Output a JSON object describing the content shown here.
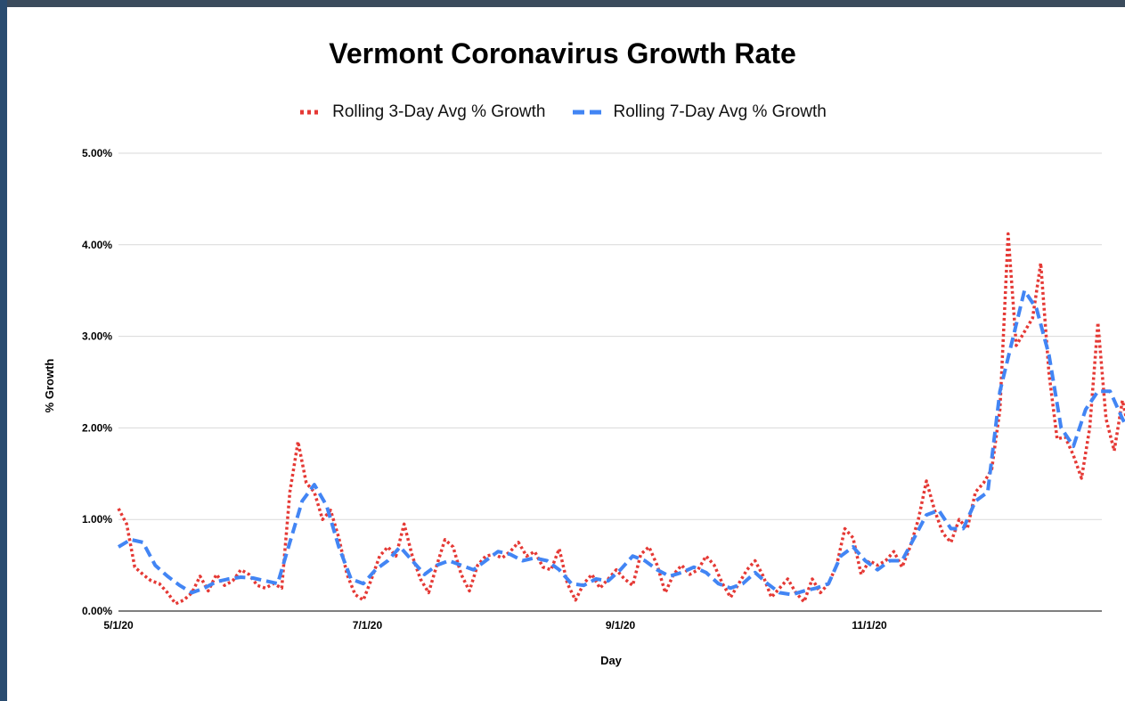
{
  "chart_data": {
    "type": "line",
    "title": "Vermont Coronavirus Growth Rate",
    "xlabel": "Day",
    "ylabel": "% Growth",
    "ylim": [
      0,
      5
    ],
    "y_ticks": [
      "0.00%",
      "1.00%",
      "2.00%",
      "3.00%",
      "4.00%",
      "5.00%"
    ],
    "x_ticks": [
      {
        "label": "5/1/20",
        "day": 0
      },
      {
        "label": "7/1/20",
        "day": 61
      },
      {
        "label": "9/1/20",
        "day": 123
      },
      {
        "label": "11/1/20",
        "day": 184
      }
    ],
    "x_range_days": [
      0,
      240
    ],
    "grid": true,
    "legend_position": "top-center",
    "series": [
      {
        "name": "Rolling 3-Day Avg % Growth",
        "color": "#e53935",
        "style": "dotted",
        "points": [
          [
            0,
            1.12
          ],
          [
            2,
            0.95
          ],
          [
            4,
            0.48
          ],
          [
            6,
            0.4
          ],
          [
            8,
            0.33
          ],
          [
            10,
            0.3
          ],
          [
            12,
            0.2
          ],
          [
            14,
            0.08
          ],
          [
            16,
            0.12
          ],
          [
            18,
            0.2
          ],
          [
            20,
            0.38
          ],
          [
            22,
            0.22
          ],
          [
            24,
            0.4
          ],
          [
            26,
            0.28
          ],
          [
            28,
            0.33
          ],
          [
            30,
            0.45
          ],
          [
            32,
            0.4
          ],
          [
            34,
            0.28
          ],
          [
            36,
            0.25
          ],
          [
            38,
            0.3
          ],
          [
            40,
            0.25
          ],
          [
            42,
            1.3
          ],
          [
            44,
            1.85
          ],
          [
            46,
            1.4
          ],
          [
            48,
            1.3
          ],
          [
            50,
            1.0
          ],
          [
            52,
            1.1
          ],
          [
            54,
            0.8
          ],
          [
            56,
            0.4
          ],
          [
            58,
            0.18
          ],
          [
            60,
            0.12
          ],
          [
            62,
            0.35
          ],
          [
            64,
            0.6
          ],
          [
            66,
            0.7
          ],
          [
            68,
            0.6
          ],
          [
            70,
            0.95
          ],
          [
            72,
            0.6
          ],
          [
            74,
            0.35
          ],
          [
            76,
            0.2
          ],
          [
            78,
            0.5
          ],
          [
            80,
            0.78
          ],
          [
            82,
            0.7
          ],
          [
            84,
            0.4
          ],
          [
            86,
            0.22
          ],
          [
            88,
            0.5
          ],
          [
            90,
            0.6
          ],
          [
            92,
            0.62
          ],
          [
            94,
            0.58
          ],
          [
            96,
            0.65
          ],
          [
            98,
            0.75
          ],
          [
            100,
            0.6
          ],
          [
            102,
            0.65
          ],
          [
            104,
            0.48
          ],
          [
            106,
            0.45
          ],
          [
            108,
            0.68
          ],
          [
            110,
            0.3
          ],
          [
            112,
            0.12
          ],
          [
            114,
            0.3
          ],
          [
            116,
            0.4
          ],
          [
            118,
            0.25
          ],
          [
            120,
            0.35
          ],
          [
            122,
            0.45
          ],
          [
            124,
            0.35
          ],
          [
            126,
            0.28
          ],
          [
            128,
            0.62
          ],
          [
            130,
            0.7
          ],
          [
            132,
            0.5
          ],
          [
            134,
            0.2
          ],
          [
            136,
            0.4
          ],
          [
            138,
            0.5
          ],
          [
            140,
            0.4
          ],
          [
            142,
            0.45
          ],
          [
            144,
            0.6
          ],
          [
            146,
            0.5
          ],
          [
            148,
            0.3
          ],
          [
            150,
            0.15
          ],
          [
            152,
            0.3
          ],
          [
            154,
            0.45
          ],
          [
            156,
            0.55
          ],
          [
            158,
            0.38
          ],
          [
            160,
            0.15
          ],
          [
            162,
            0.25
          ],
          [
            164,
            0.35
          ],
          [
            166,
            0.2
          ],
          [
            168,
            0.1
          ],
          [
            170,
            0.35
          ],
          [
            172,
            0.2
          ],
          [
            174,
            0.3
          ],
          [
            176,
            0.5
          ],
          [
            178,
            0.9
          ],
          [
            180,
            0.8
          ],
          [
            182,
            0.4
          ],
          [
            184,
            0.55
          ],
          [
            186,
            0.5
          ],
          [
            188,
            0.55
          ],
          [
            190,
            0.65
          ],
          [
            192,
            0.48
          ],
          [
            194,
            0.7
          ],
          [
            196,
            1.0
          ],
          [
            198,
            1.42
          ],
          [
            200,
            1.1
          ],
          [
            202,
            0.85
          ],
          [
            204,
            0.75
          ],
          [
            206,
            1.0
          ],
          [
            208,
            0.9
          ],
          [
            210,
            1.3
          ],
          [
            212,
            1.4
          ],
          [
            214,
            1.55
          ],
          [
            216,
            2.2
          ],
          [
            218,
            4.12
          ],
          [
            220,
            2.9
          ],
          [
            222,
            3.05
          ],
          [
            224,
            3.2
          ],
          [
            226,
            3.8
          ],
          [
            228,
            2.6
          ],
          [
            230,
            1.88
          ],
          [
            232,
            1.9
          ],
          [
            234,
            1.7
          ],
          [
            236,
            1.45
          ],
          [
            238,
            2.0
          ],
          [
            240,
            3.15
          ],
          [
            242,
            2.1
          ],
          [
            244,
            1.75
          ],
          [
            246,
            2.3
          ],
          [
            248,
            1.9
          ],
          [
            250,
            1.55
          ],
          [
            252,
            1.8
          ],
          [
            254,
            1.4
          ],
          [
            256,
            1.25
          ],
          [
            258,
            1.35
          ],
          [
            260,
            1.1
          ]
        ]
      },
      {
        "name": "Rolling 7-Day Avg % Growth",
        "color": "#4285f4",
        "style": "dashed",
        "points": [
          [
            0,
            0.7
          ],
          [
            3,
            0.78
          ],
          [
            6,
            0.75
          ],
          [
            9,
            0.5
          ],
          [
            12,
            0.38
          ],
          [
            15,
            0.28
          ],
          [
            18,
            0.2
          ],
          [
            21,
            0.25
          ],
          [
            24,
            0.32
          ],
          [
            27,
            0.35
          ],
          [
            30,
            0.37
          ],
          [
            33,
            0.36
          ],
          [
            36,
            0.33
          ],
          [
            39,
            0.3
          ],
          [
            42,
            0.75
          ],
          [
            45,
            1.2
          ],
          [
            48,
            1.38
          ],
          [
            51,
            1.15
          ],
          [
            54,
            0.7
          ],
          [
            57,
            0.35
          ],
          [
            60,
            0.3
          ],
          [
            63,
            0.45
          ],
          [
            66,
            0.55
          ],
          [
            69,
            0.7
          ],
          [
            72,
            0.55
          ],
          [
            75,
            0.4
          ],
          [
            78,
            0.5
          ],
          [
            81,
            0.55
          ],
          [
            84,
            0.5
          ],
          [
            87,
            0.45
          ],
          [
            90,
            0.55
          ],
          [
            93,
            0.65
          ],
          [
            96,
            0.62
          ],
          [
            99,
            0.55
          ],
          [
            102,
            0.58
          ],
          [
            105,
            0.55
          ],
          [
            108,
            0.45
          ],
          [
            111,
            0.3
          ],
          [
            114,
            0.28
          ],
          [
            117,
            0.35
          ],
          [
            120,
            0.33
          ],
          [
            123,
            0.45
          ],
          [
            126,
            0.6
          ],
          [
            129,
            0.55
          ],
          [
            132,
            0.45
          ],
          [
            135,
            0.38
          ],
          [
            138,
            0.42
          ],
          [
            141,
            0.48
          ],
          [
            144,
            0.42
          ],
          [
            147,
            0.3
          ],
          [
            150,
            0.25
          ],
          [
            153,
            0.3
          ],
          [
            156,
            0.42
          ],
          [
            159,
            0.3
          ],
          [
            162,
            0.2
          ],
          [
            165,
            0.18
          ],
          [
            168,
            0.22
          ],
          [
            171,
            0.25
          ],
          [
            174,
            0.3
          ],
          [
            177,
            0.6
          ],
          [
            180,
            0.7
          ],
          [
            183,
            0.55
          ],
          [
            186,
            0.45
          ],
          [
            189,
            0.55
          ],
          [
            192,
            0.55
          ],
          [
            195,
            0.8
          ],
          [
            198,
            1.05
          ],
          [
            201,
            1.1
          ],
          [
            204,
            0.9
          ],
          [
            207,
            0.9
          ],
          [
            210,
            1.2
          ],
          [
            213,
            1.3
          ],
          [
            216,
            2.4
          ],
          [
            219,
            2.95
          ],
          [
            222,
            3.5
          ],
          [
            225,
            3.3
          ],
          [
            228,
            2.8
          ],
          [
            231,
            2.0
          ],
          [
            234,
            1.8
          ],
          [
            237,
            2.2
          ],
          [
            240,
            2.4
          ],
          [
            243,
            2.4
          ],
          [
            246,
            2.1
          ],
          [
            249,
            1.85
          ],
          [
            252,
            1.75
          ],
          [
            255,
            1.55
          ],
          [
            258,
            1.3
          ],
          [
            260,
            1.2
          ]
        ]
      }
    ]
  }
}
